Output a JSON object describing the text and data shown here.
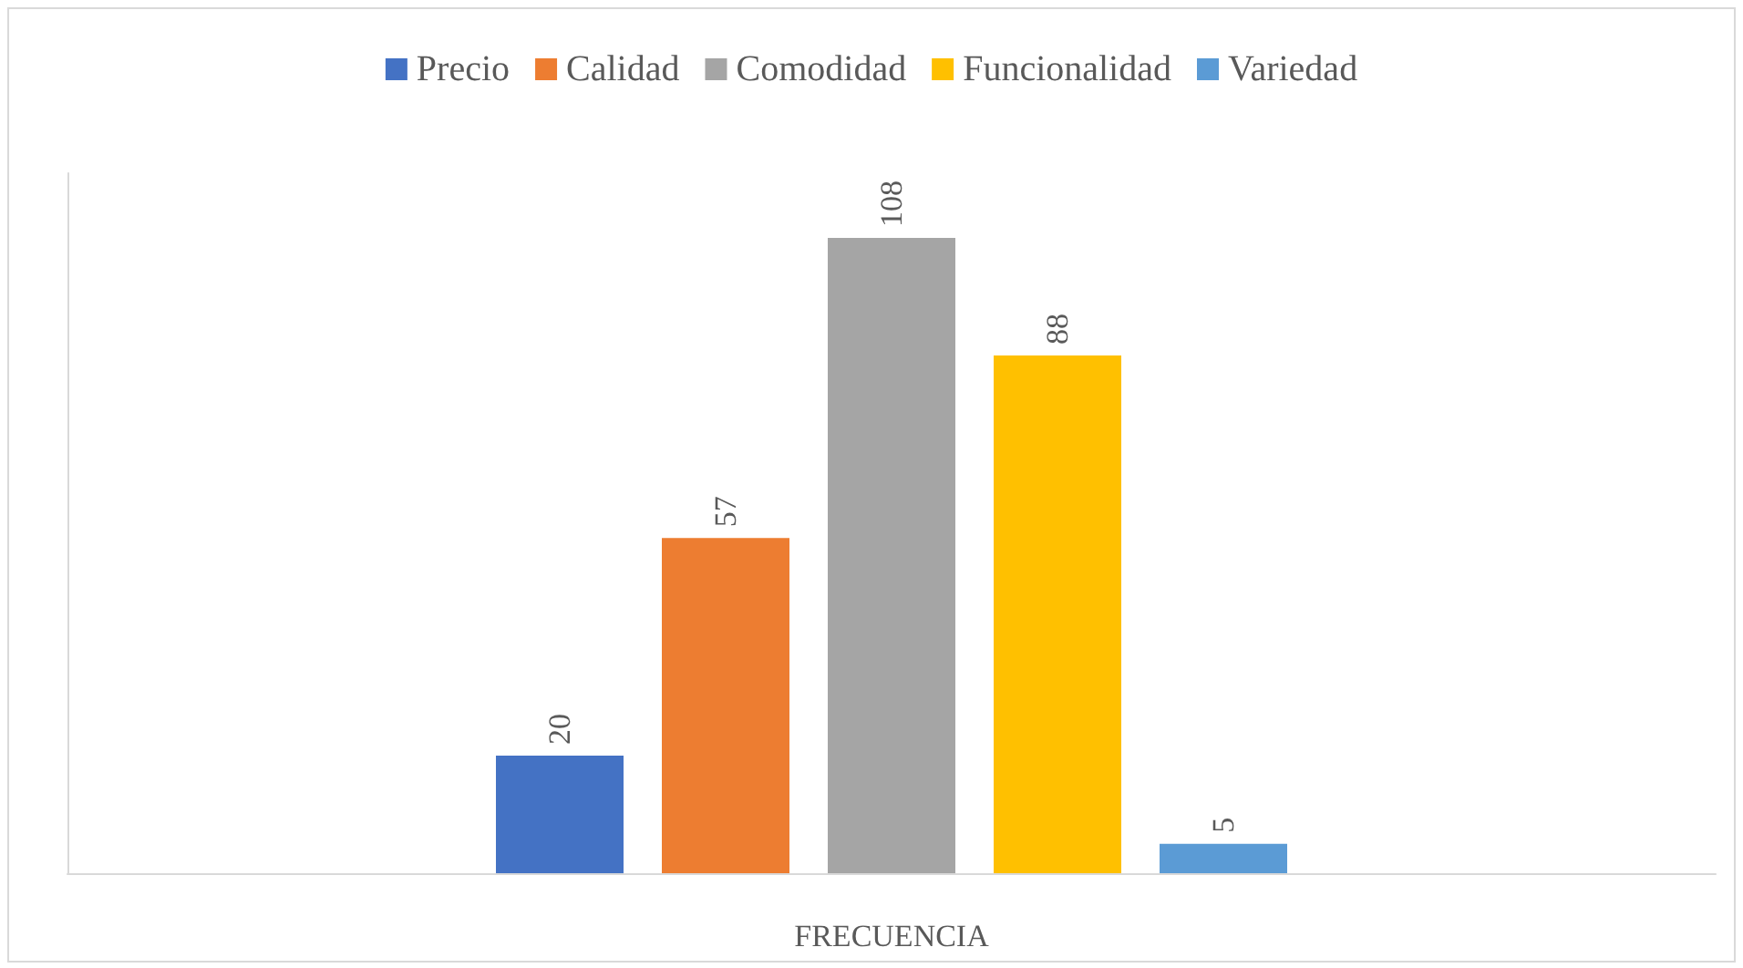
{
  "chart_data": {
    "type": "bar",
    "xlabel": "FRECUENCIA",
    "categories": [
      null
    ],
    "series": [
      {
        "name": "Precio",
        "color": "#4472c4",
        "values": [
          20
        ]
      },
      {
        "name": "Calidad",
        "color": "#ed7d31",
        "values": [
          57
        ]
      },
      {
        "name": "Comodidad",
        "color": "#a5a5a5",
        "values": [
          108
        ]
      },
      {
        "name": "Funcionalidad",
        "color": "#ffc000",
        "values": [
          88
        ]
      },
      {
        "name": "Variedad",
        "color": "#5b9bd5",
        "values": [
          5
        ]
      }
    ],
    "data_labels": true,
    "legend": "top",
    "grid": false
  }
}
